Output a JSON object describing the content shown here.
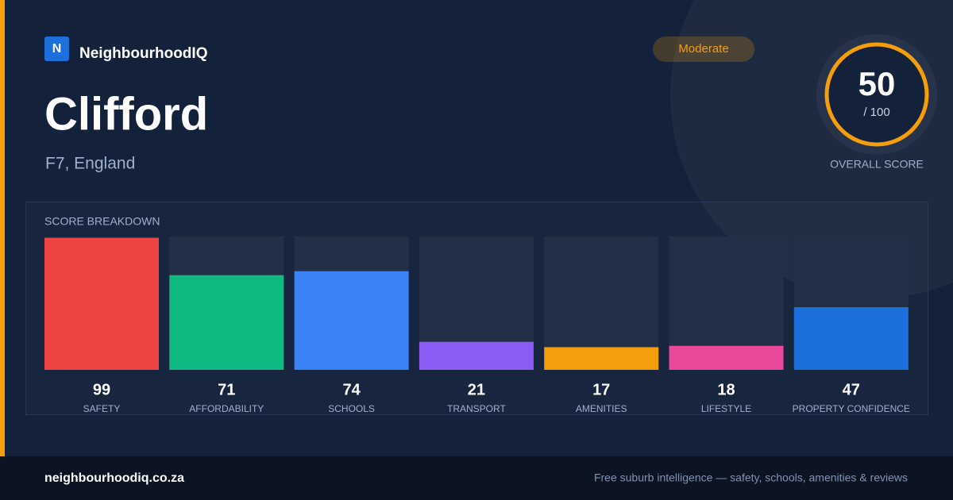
{
  "brand": {
    "logo": "N",
    "name": "NeighbourhoodIQ"
  },
  "badge": "Moderate",
  "place": {
    "name": "Clifford",
    "location": "F7, England"
  },
  "score": {
    "value": 50,
    "out_of": "/ 100",
    "label": "OVERALL SCORE"
  },
  "breakdown": {
    "title": "SCORE BREAKDOWN",
    "ylim": [
      0,
      100
    ],
    "items": [
      {
        "label": "SAFETY",
        "value": 99,
        "color": "#ef4444"
      },
      {
        "label": "AFFORDABILITY",
        "value": 71,
        "color": "#10b981"
      },
      {
        "label": "SCHOOLS",
        "value": 74,
        "color": "#3b82f6"
      },
      {
        "label": "TRANSPORT",
        "value": 21,
        "color": "#8b5cf6"
      },
      {
        "label": "AMENITIES",
        "value": 17,
        "color": "#f59e0b"
      },
      {
        "label": "LIFESTYLE",
        "value": 18,
        "color": "#ec4899"
      },
      {
        "label": "PROPERTY CONFIDENCE",
        "value": 47,
        "color": "#1d6fdc"
      }
    ]
  },
  "footer": {
    "site": "neighbourhoodiq.co.za",
    "tagline": "Free suburb intelligence — safety, schools, amenities & reviews"
  }
}
